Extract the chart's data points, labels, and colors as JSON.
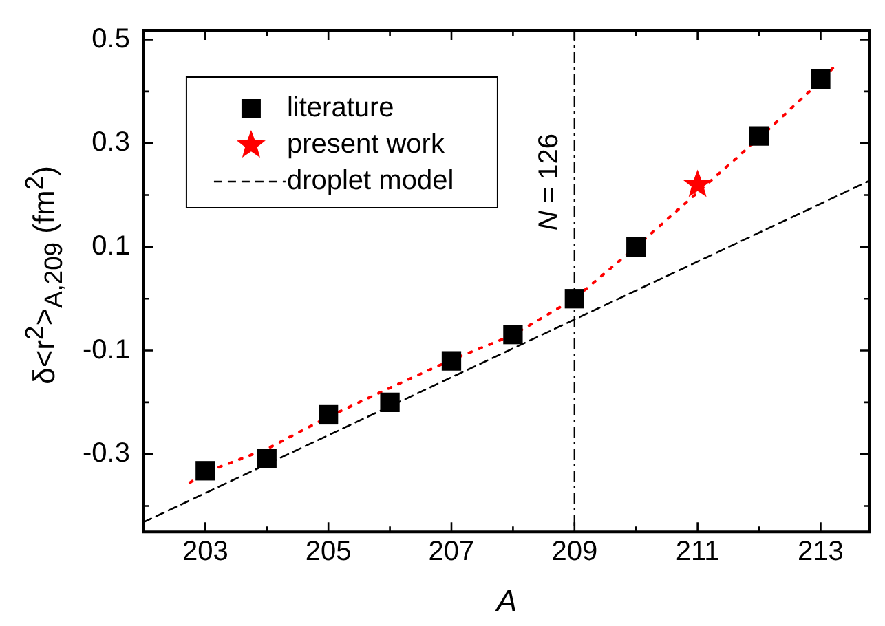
{
  "chart_data": {
    "type": "scatter",
    "xlabel": "A",
    "ylabel": "δ<r$^{2}$>$_{A,209}$ (fm$^{2}$)",
    "xlim": [
      202,
      213.8
    ],
    "xticks": [
      203,
      {
        "value": 204,
        "label": null
      },
      205,
      {
        "value": 206,
        "label": null
      },
      207,
      {
        "value": 208,
        "label": null
      },
      209,
      {
        "value": 210,
        "label": null
      },
      211,
      {
        "value": 212,
        "label": null
      },
      213
    ],
    "ylim": [
      -0.45,
      0.518
    ],
    "yticks": [
      {
        "value": -0.4,
        "label": null
      },
      -0.3,
      {
        "value": -0.2,
        "label": null
      },
      -0.1,
      {
        "value": 0,
        "label": null
      },
      0.1,
      {
        "value": 0.2,
        "label": null
      },
      0.3,
      {
        "value": 0.4,
        "label": null
      },
      0.5
    ],
    "grid": false,
    "legend": "top left",
    "series": [
      {
        "type": "line",
        "color": "#ff0000",
        "marker": "none",
        "line_style": "dotted",
        "x": [
          202.75,
          203,
          204,
          205,
          206,
          207,
          208,
          209,
          210,
          211,
          212,
          213,
          213.24
        ],
        "values": [
          -0.355,
          -0.335,
          -0.29,
          -0.228,
          -0.172,
          -0.118,
          -0.07,
          0.0,
          0.1,
          0.205,
          0.31,
          0.42,
          0.45
        ]
      },
      {
        "type": "line",
        "name": "droplet model",
        "color": "#000000",
        "marker": "none",
        "line_style": "dashed",
        "x": [
          202,
          213.8
        ],
        "values": [
          -0.431,
          0.228
        ]
      },
      {
        "type": "scatter",
        "name": "literature",
        "color": "#000000",
        "marker": "square",
        "x": [
          203,
          204,
          205,
          206,
          207,
          208,
          209,
          210,
          212,
          213
        ],
        "values": [
          -0.332,
          -0.308,
          -0.224,
          -0.2,
          -0.12,
          -0.069,
          0.0,
          0.1,
          0.314,
          0.424
        ]
      },
      {
        "type": "scatter",
        "name": "present work",
        "color": "#ff0000",
        "marker": "star",
        "x": [
          211
        ],
        "values": [
          0.22
        ]
      }
    ],
    "annotations": [
      {
        "text": "N = 126",
        "x": 209,
        "y": 0.225
      }
    ],
    "ref_lines": [
      {
        "axis": "x",
        "value": 209,
        "color": "#000000",
        "line_style": "dashdot"
      }
    ]
  }
}
